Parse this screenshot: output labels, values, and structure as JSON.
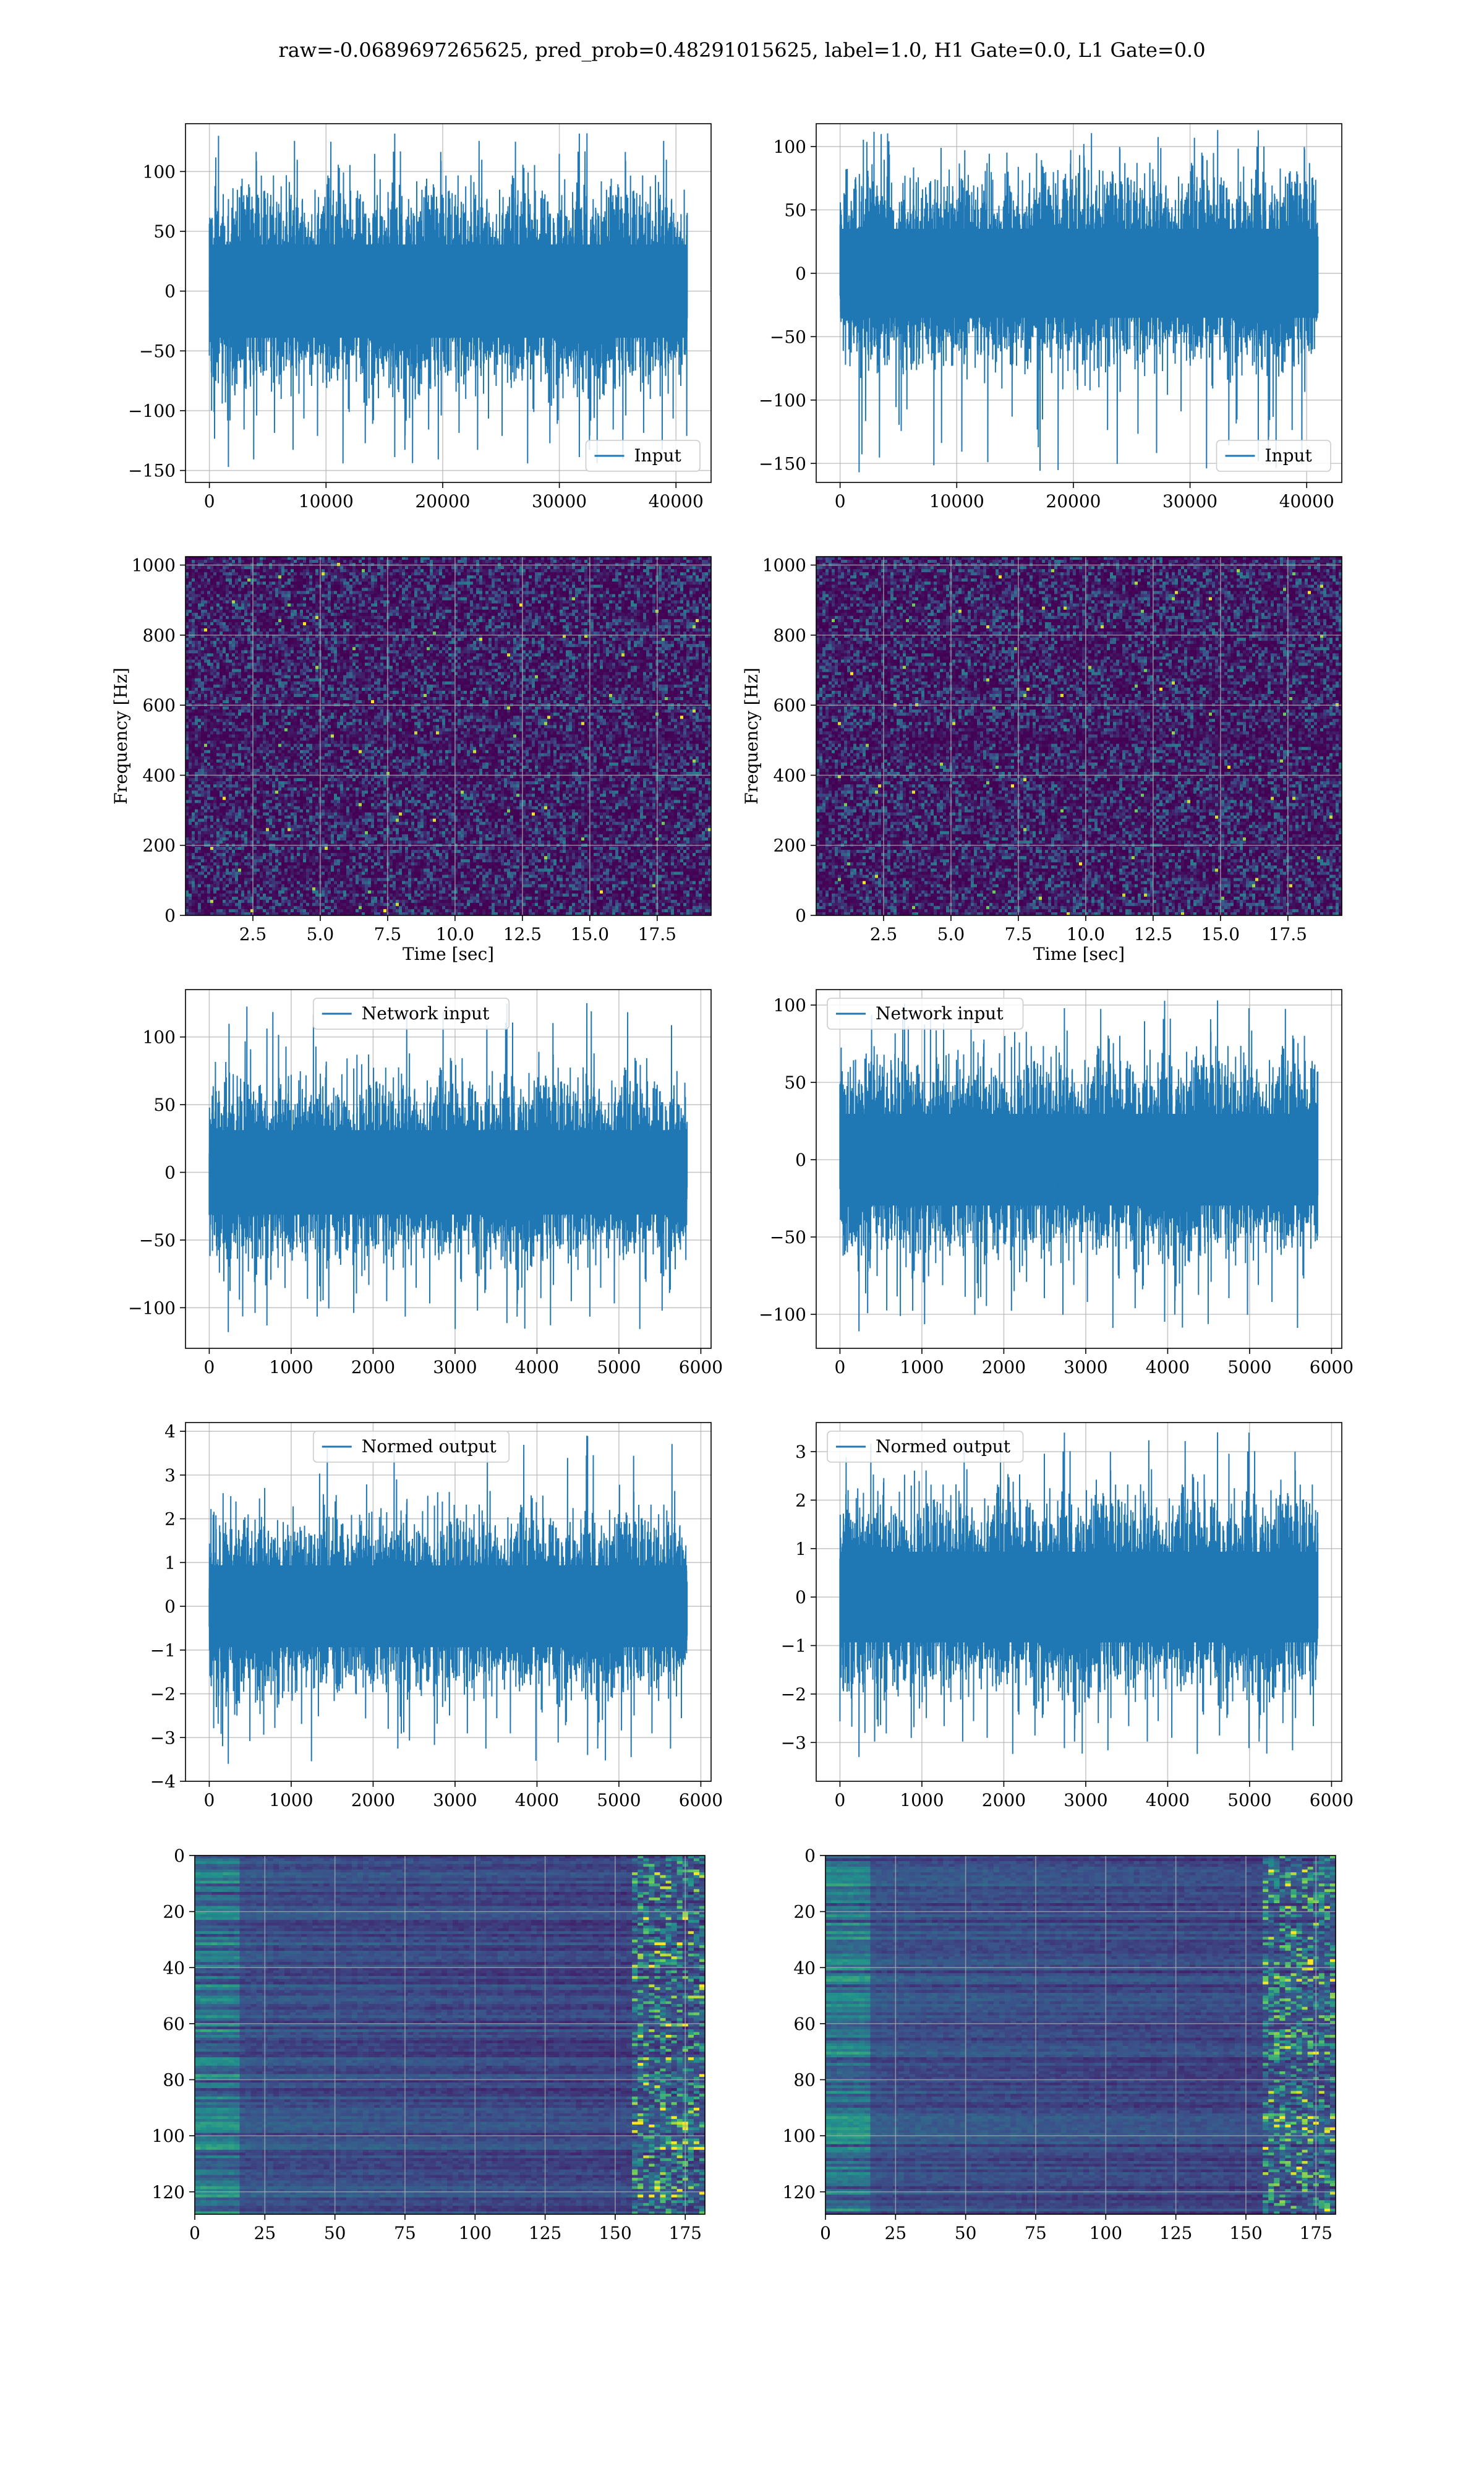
{
  "figure": {
    "title": "raw=-0.0689697265625, pred_prob=0.48291015625, label=1.0, H1 Gate=0.0, L1 Gate=0.0"
  },
  "colors": {
    "line": "#1f77b4",
    "grid": "#b0b0b0",
    "heat_low": "#440154",
    "heat_mid": "#3b528b",
    "heat_teal": "#21918c",
    "heat_green": "#5ec962",
    "heat_high": "#fde725"
  },
  "chart_data": [
    {
      "id": "input-h1",
      "type": "line",
      "legend_position": "lower right",
      "series": [
        {
          "name": "Input"
        }
      ],
      "x_range": [
        0,
        40960
      ],
      "xlim": [
        -2048,
        43008
      ],
      "ylim": [
        -160,
        140
      ],
      "x_ticks": [
        0,
        10000,
        20000,
        30000,
        40000
      ],
      "y_ticks": [
        -150,
        -100,
        -50,
        0,
        50,
        100
      ],
      "band_envelope": {
        "upper": 50,
        "lower": -50,
        "peak_max": 132,
        "peak_min": -147
      },
      "grid": true
    },
    {
      "id": "input-l1",
      "type": "line",
      "legend_position": "lower right",
      "series": [
        {
          "name": "Input"
        }
      ],
      "x_range": [
        0,
        40960
      ],
      "xlim": [
        -2048,
        43008
      ],
      "ylim": [
        -165,
        118
      ],
      "x_ticks": [
        0,
        10000,
        20000,
        30000,
        40000
      ],
      "y_ticks": [
        -150,
        -100,
        -50,
        0,
        50,
        100
      ],
      "band_envelope": {
        "upper": 45,
        "lower": -45,
        "peak_max": 113,
        "peak_min": -157
      },
      "grid": true
    },
    {
      "id": "spectrogram-h1",
      "type": "heatmap",
      "xlabel": "Time [sec]",
      "ylabel": "Frequency [Hz]",
      "xlim": [
        0,
        19.5
      ],
      "ylim": [
        0,
        1024
      ],
      "x_ticks": [
        2.5,
        5.0,
        7.5,
        10.0,
        12.5,
        15.0,
        17.5
      ],
      "y_ticks": [
        0,
        200,
        400,
        600,
        800,
        1000
      ],
      "grid": true
    },
    {
      "id": "spectrogram-l1",
      "type": "heatmap",
      "xlabel": "Time [sec]",
      "ylabel": "Frequency [Hz]",
      "xlim": [
        0,
        19.5
      ],
      "ylim": [
        0,
        1024
      ],
      "x_ticks": [
        2.5,
        5.0,
        7.5,
        10.0,
        12.5,
        15.0,
        17.5
      ],
      "y_ticks": [
        0,
        200,
        400,
        600,
        800,
        1000
      ],
      "grid": true
    },
    {
      "id": "network-input-h1",
      "type": "line",
      "legend_position": "upper center",
      "series": [
        {
          "name": "Network input"
        }
      ],
      "x_range": [
        0,
        5832
      ],
      "xlim": [
        -290,
        6125
      ],
      "ylim": [
        -130,
        135
      ],
      "x_ticks": [
        0,
        1000,
        2000,
        3000,
        4000,
        5000,
        6000
      ],
      "y_ticks": [
        -100,
        -50,
        0,
        50,
        100
      ],
      "band_envelope": {
        "upper": 40,
        "lower": -40,
        "peak_max": 125,
        "peak_min": -118
      },
      "grid": true
    },
    {
      "id": "network-input-l1",
      "type": "line",
      "legend_position": "upper left",
      "series": [
        {
          "name": "Network input"
        }
      ],
      "x_range": [
        0,
        5832
      ],
      "xlim": [
        -290,
        6125
      ],
      "ylim": [
        -122,
        110
      ],
      "x_ticks": [
        0,
        1000,
        2000,
        3000,
        4000,
        5000,
        6000
      ],
      "y_ticks": [
        -100,
        -50,
        0,
        50,
        100
      ],
      "band_envelope": {
        "upper": 38,
        "lower": -38,
        "peak_max": 103,
        "peak_min": -111
      },
      "grid": true
    },
    {
      "id": "normed-output-h1",
      "type": "line",
      "legend_position": "upper center",
      "series": [
        {
          "name": "Normed output"
        }
      ],
      "x_range": [
        0,
        5832
      ],
      "xlim": [
        -290,
        6125
      ],
      "ylim": [
        -4.0,
        4.2
      ],
      "x_ticks": [
        0,
        1000,
        2000,
        3000,
        4000,
        5000,
        6000
      ],
      "y_ticks": [
        -4,
        -3,
        -2,
        -1,
        0,
        1,
        2,
        3,
        4
      ],
      "band_envelope": {
        "upper": 1.2,
        "lower": -1.2,
        "peak_max": 3.9,
        "peak_min": -3.6
      },
      "grid": true
    },
    {
      "id": "normed-output-l1",
      "type": "line",
      "legend_position": "upper left",
      "series": [
        {
          "name": "Normed output"
        }
      ],
      "x_range": [
        0,
        5832
      ],
      "xlim": [
        -290,
        6125
      ],
      "ylim": [
        -3.8,
        3.6
      ],
      "x_ticks": [
        0,
        1000,
        2000,
        3000,
        4000,
        5000,
        6000
      ],
      "y_ticks": [
        -3,
        -2,
        -1,
        0,
        1,
        2,
        3
      ],
      "band_envelope": {
        "upper": 1.2,
        "lower": -1.2,
        "peak_max": 3.4,
        "peak_min": -3.3
      },
      "grid": true
    },
    {
      "id": "feature-map-h1",
      "type": "heatmap",
      "xlim": [
        0,
        182
      ],
      "ylim": [
        128,
        0
      ],
      "x_ticks": [
        0,
        25,
        50,
        75,
        100,
        125,
        150,
        175
      ],
      "y_ticks": [
        0,
        20,
        40,
        60,
        80,
        100,
        120
      ],
      "grid": true
    },
    {
      "id": "feature-map-l1",
      "type": "heatmap",
      "xlim": [
        0,
        182
      ],
      "ylim": [
        128,
        0
      ],
      "x_ticks": [
        0,
        25,
        50,
        75,
        100,
        125,
        150,
        175
      ],
      "y_ticks": [
        0,
        20,
        40,
        60,
        80,
        100,
        120
      ],
      "grid": true
    }
  ]
}
